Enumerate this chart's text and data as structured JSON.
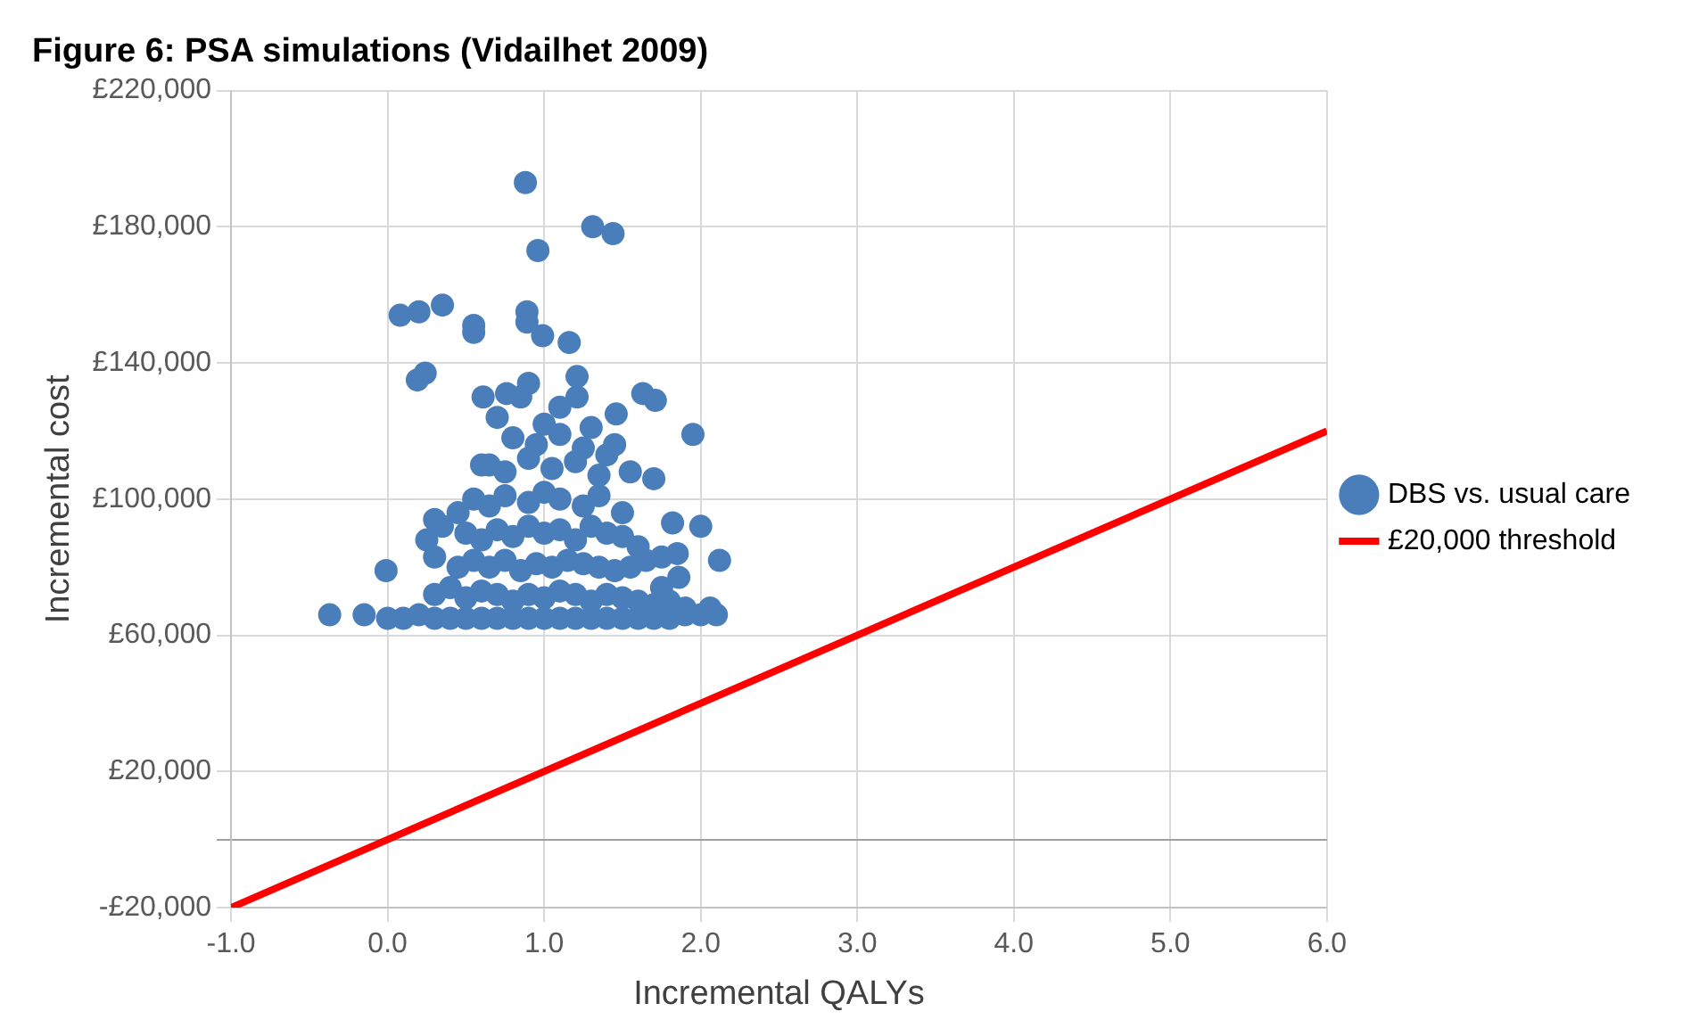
{
  "chart_data": {
    "type": "scatter",
    "title": "Figure 6: PSA simulations (Vidailhet 2009)",
    "xlabel": "Incremental QALYs",
    "ylabel": "Incremental cost",
    "xlim": [
      -1,
      6
    ],
    "xticks": [
      {
        "value": -1,
        "label": "-1.0"
      },
      {
        "value": 0,
        "label": "0.0"
      },
      {
        "value": 1,
        "label": "1.0"
      },
      {
        "value": 2,
        "label": "2.0"
      },
      {
        "value": 3,
        "label": "3.0"
      },
      {
        "value": 4,
        "label": "4.0"
      },
      {
        "value": 5,
        "label": "5.0"
      },
      {
        "value": 6,
        "label": "6.0"
      }
    ],
    "ylim": [
      -20000,
      220000
    ],
    "yticks": [
      {
        "value": -20000,
        "label": "-£20,000"
      },
      {
        "value": 0,
        "label": null
      },
      {
        "value": 20000,
        "label": "£20,000"
      },
      {
        "value": 60000,
        "label": "£60,000"
      },
      {
        "value": 100000,
        "label": "£100,000"
      },
      {
        "value": 140000,
        "label": "£140,000"
      },
      {
        "value": 180000,
        "label": "£180,000"
      },
      {
        "value": 220000,
        "label": "£220,000"
      }
    ],
    "grid": true,
    "legend": "right",
    "series": [
      {
        "name": "DBS vs. usual care",
        "marker": "circle",
        "color": "#4a7ebb",
        "x": [
          0.88,
          0.96,
          1.31,
          1.44,
          0.08,
          0.2,
          0.35,
          0.55,
          0.55,
          0.89,
          0.89,
          0.99,
          1.16,
          0.24,
          0.19,
          0.76,
          0.85,
          0.61,
          1.63,
          1.71,
          1.95,
          1.46,
          1.21,
          1.21,
          2.12,
          1.86,
          1.82,
          -0.37,
          -0.01,
          -0.15,
          2.06,
          0.0,
          0.1,
          0.2,
          0.3,
          0.4,
          0.5,
          0.6,
          0.7,
          0.8,
          0.9,
          1.0,
          1.1,
          1.2,
          1.3,
          1.4,
          1.5,
          1.6,
          1.7,
          1.8,
          1.9,
          2.0,
          2.1,
          0.3,
          0.4,
          0.5,
          0.6,
          0.7,
          0.8,
          0.9,
          1.0,
          1.1,
          1.2,
          1.3,
          1.4,
          1.5,
          1.6,
          1.7,
          1.8,
          1.9,
          0.3,
          0.45,
          0.55,
          0.65,
          0.75,
          0.85,
          0.95,
          1.05,
          1.15,
          1.25,
          1.35,
          1.45,
          1.55,
          1.65,
          1.75,
          0.35,
          0.5,
          0.6,
          0.7,
          0.8,
          0.9,
          1.0,
          1.1,
          1.2,
          1.3,
          1.4,
          1.5,
          1.6,
          0.55,
          0.65,
          0.75,
          0.9,
          1.0,
          1.1,
          1.25,
          1.35,
          1.5,
          0.6,
          0.75,
          0.9,
          1.05,
          1.2,
          1.35,
          0.8,
          0.95,
          1.1,
          1.25,
          1.4,
          0.7,
          1.0,
          1.3,
          0.9,
          1.1,
          1.55,
          1.7,
          1.45,
          0.65,
          0.25,
          0.3,
          1.75,
          2.0,
          1.85,
          0.45
        ],
        "values": [
          193000,
          173000,
          180000,
          178000,
          154000,
          155000,
          157000,
          151000,
          149000,
          155000,
          152000,
          148000,
          146000,
          137000,
          135000,
          131000,
          130000,
          130000,
          131000,
          129000,
          119000,
          125000,
          130000,
          136000,
          82000,
          77000,
          93000,
          66000,
          79000,
          66000,
          68000,
          65000,
          65000,
          66000,
          65000,
          65000,
          65000,
          65000,
          65000,
          65000,
          65000,
          65000,
          65000,
          65000,
          65000,
          65000,
          65000,
          65000,
          65000,
          65000,
          66000,
          66000,
          66000,
          72000,
          74000,
          71000,
          73000,
          72000,
          70000,
          72000,
          71000,
          73000,
          72000,
          70000,
          72000,
          71000,
          70000,
          69000,
          70000,
          68000,
          83000,
          80000,
          82000,
          80000,
          82000,
          79000,
          81000,
          80000,
          82000,
          81000,
          80000,
          79000,
          80000,
          82000,
          74000,
          92000,
          90000,
          88000,
          91000,
          89000,
          92000,
          90000,
          91000,
          88000,
          92000,
          90000,
          89000,
          86000,
          100000,
          98000,
          101000,
          99000,
          102000,
          100000,
          98000,
          101000,
          96000,
          110000,
          108000,
          112000,
          109000,
          111000,
          107000,
          118000,
          116000,
          119000,
          115000,
          113000,
          124000,
          122000,
          121000,
          134000,
          127000,
          108000,
          106000,
          116000,
          110000,
          88000,
          94000,
          83000,
          92000,
          84000,
          96000
        ]
      },
      {
        "name": "£20,000 threshold",
        "type": "line",
        "color": "#ff0000",
        "x": [
          -1,
          6
        ],
        "values": [
          -20000,
          120000
        ]
      }
    ]
  }
}
